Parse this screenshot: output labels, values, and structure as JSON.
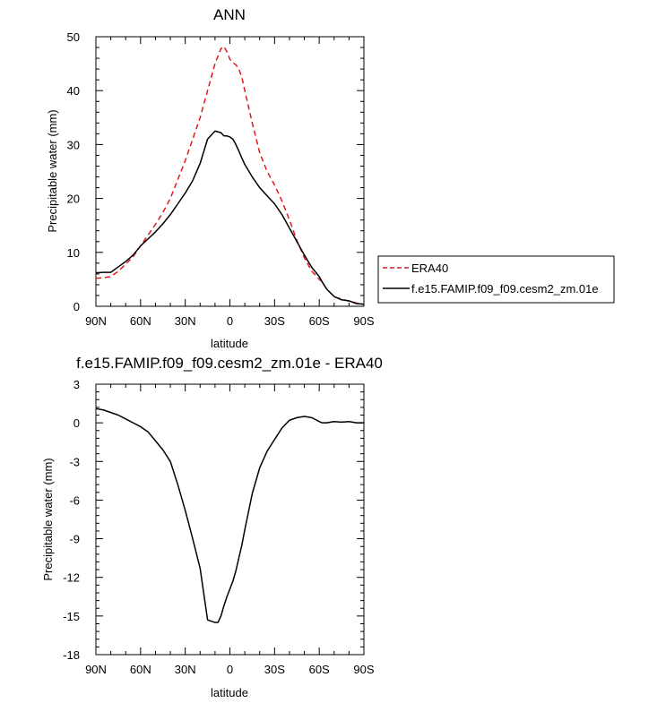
{
  "chart_data": [
    {
      "type": "line",
      "title": "ANN",
      "xlabel": "latitude",
      "ylabel": "Precipitable water (mm)",
      "xlim": [
        90,
        -90
      ],
      "ylim": [
        0,
        50
      ],
      "x_ticks": [
        90,
        60,
        30,
        0,
        -30,
        -60,
        -90
      ],
      "x_tick_labels": [
        "90N",
        "60N",
        "30N",
        "0",
        "30S",
        "60S",
        "90S"
      ],
      "y_ticks": [
        0,
        10,
        20,
        30,
        40,
        50
      ],
      "y_tick_labels": [
        "0",
        "10",
        "20",
        "30",
        "40",
        "50"
      ],
      "grid": false,
      "legend_position": "right",
      "series": [
        {
          "name": "ERA40",
          "color": "#e0191e",
          "dash": "dashed",
          "x": [
            90,
            85,
            80,
            75,
            70,
            65,
            60,
            55,
            50,
            45,
            40,
            35,
            30,
            25,
            20,
            15,
            10,
            6,
            4,
            2,
            0,
            -2,
            -4,
            -6,
            -8,
            -10,
            -15,
            -20,
            -25,
            -30,
            -35,
            -40,
            -45,
            -50,
            -55,
            -60,
            -62,
            -65,
            -70,
            -75,
            -80,
            -85,
            -90
          ],
          "y": [
            5.2,
            5.3,
            5.5,
            6.5,
            7.8,
            9.2,
            11.2,
            13.2,
            15.2,
            17.4,
            20.0,
            23.5,
            27.0,
            31.0,
            35.0,
            40.0,
            45.0,
            47.8,
            48.2,
            47.2,
            45.8,
            45.2,
            44.8,
            44.0,
            42.5,
            40.0,
            34.0,
            28.5,
            25.0,
            22.5,
            19.5,
            16.0,
            12.2,
            9.0,
            6.5,
            5.0,
            4.5,
            3.2,
            1.8,
            1.3,
            1.0,
            0.6,
            0.3
          ]
        },
        {
          "name": "f.e15.FAMIP.f09_f09.cesm2_zm.01e",
          "color": "#000000",
          "dash": "solid",
          "x": [
            90,
            85,
            80,
            75,
            70,
            65,
            60,
            55,
            50,
            45,
            40,
            35,
            30,
            25,
            20,
            15,
            10,
            6,
            4,
            2,
            0,
            -2,
            -4,
            -6,
            -8,
            -10,
            -15,
            -20,
            -25,
            -30,
            -35,
            -40,
            -45,
            -50,
            -55,
            -60,
            -62,
            -65,
            -70,
            -75,
            -80,
            -85,
            -90
          ],
          "y": [
            6.2,
            6.3,
            6.3,
            7.3,
            8.3,
            9.5,
            11.2,
            12.5,
            13.8,
            15.3,
            17.0,
            19.0,
            21.0,
            23.3,
            26.5,
            31.0,
            32.5,
            32.2,
            31.6,
            31.6,
            31.4,
            31.0,
            30.0,
            28.8,
            27.5,
            26.3,
            24.0,
            22.0,
            20.5,
            19.0,
            17.0,
            14.5,
            12.0,
            9.5,
            7.2,
            5.5,
            4.5,
            3.2,
            1.8,
            1.2,
            1.0,
            0.5,
            0.4
          ]
        }
      ]
    },
    {
      "type": "line",
      "title": "f.e15.FAMIP.f09_f09.cesm2_zm.01e - ERA40",
      "xlabel": "latitude",
      "ylabel": "Precipitable water (mm)",
      "xlim": [
        90,
        -90
      ],
      "ylim": [
        -18,
        3
      ],
      "x_ticks": [
        90,
        60,
        30,
        0,
        -30,
        -60,
        -90
      ],
      "x_tick_labels": [
        "90N",
        "60N",
        "30N",
        "0",
        "30S",
        "60S",
        "90S"
      ],
      "y_ticks": [
        -18,
        -15,
        -12,
        -9,
        -6,
        -3,
        0,
        3
      ],
      "y_tick_labels": [
        "-18",
        "-15",
        "-12",
        "-9",
        "-6",
        "-3",
        "0",
        "3"
      ],
      "grid": false,
      "series": [
        {
          "color": "#000000",
          "dash": "solid",
          "x": [
            90,
            85,
            80,
            75,
            70,
            65,
            60,
            55,
            50,
            45,
            40,
            35,
            30,
            25,
            20,
            15,
            10,
            8,
            6,
            4,
            2,
            0,
            -2,
            -4,
            -6,
            -8,
            -10,
            -15,
            -20,
            -25,
            -30,
            -35,
            -40,
            -45,
            -50,
            -55,
            -60,
            -62,
            -65,
            -70,
            -75,
            -80,
            -85,
            -90
          ],
          "y": [
            1.1,
            1.0,
            0.8,
            0.6,
            0.3,
            0.0,
            -0.3,
            -0.7,
            -1.4,
            -2.1,
            -3.0,
            -4.8,
            -6.8,
            -9.0,
            -11.3,
            -15.3,
            -15.5,
            -15.5,
            -15.0,
            -14.2,
            -13.5,
            -12.9,
            -12.3,
            -11.5,
            -10.5,
            -9.5,
            -8.3,
            -5.5,
            -3.5,
            -2.2,
            -1.3,
            -0.4,
            0.2,
            0.4,
            0.5,
            0.4,
            0.1,
            0.0,
            0.0,
            0.1,
            0.05,
            0.1,
            0.0,
            0.0
          ]
        }
      ]
    }
  ]
}
